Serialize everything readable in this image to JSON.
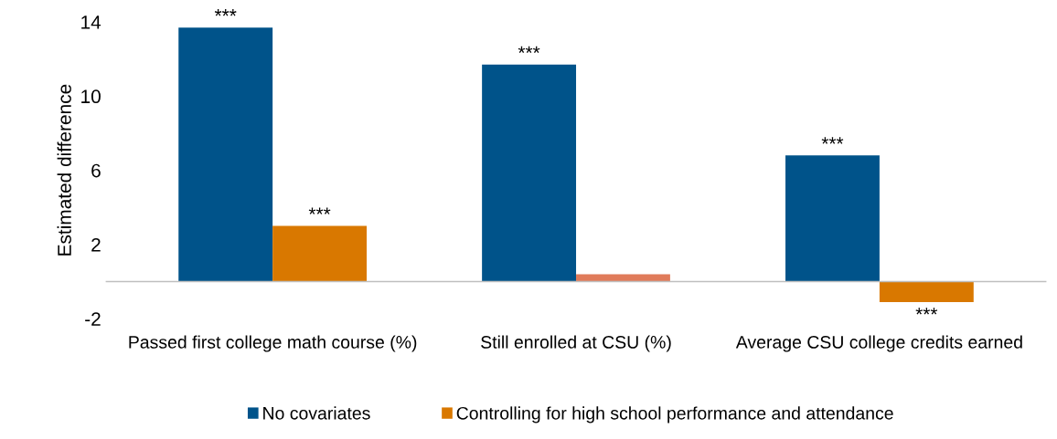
{
  "chart_data": {
    "type": "bar",
    "ylabel": "Estimated difference",
    "categories": [
      "Passed first college math course (%)",
      "Still enrolled at CSU (%)",
      "Average CSU college credits earned"
    ],
    "series": [
      {
        "name": "No covariates",
        "color": "#00538a",
        "values": [
          13.7,
          11.7,
          6.8
        ],
        "value_labels": [
          "***",
          "***",
          "***"
        ]
      },
      {
        "name": "Controlling for high school performance and attendance",
        "color": "#d97800",
        "colors": [
          "#d97800",
          "#e07b5a",
          "#d97800"
        ],
        "values": [
          3.0,
          0.4,
          -1.1
        ],
        "value_labels": [
          "***",
          null,
          "***"
        ]
      }
    ],
    "ylim": [
      -2,
      14
    ],
    "yticks": [
      -2,
      2,
      6,
      10,
      14
    ],
    "grid": false,
    "legend": "bottom"
  }
}
